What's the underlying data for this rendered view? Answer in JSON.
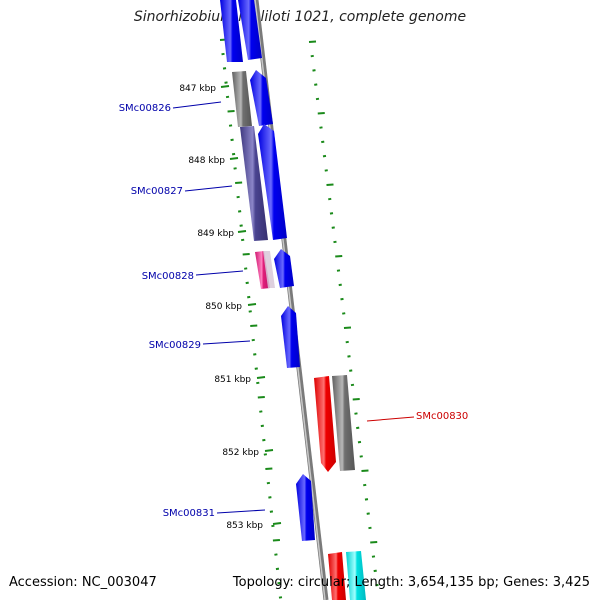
{
  "title": "Sinorhizobium meliloti 1021, complete genome",
  "footer": {
    "accession": "Accession: NC_003047",
    "topology": "Topology: circular; Length: 3,654,135 bp; Genes: 3,425"
  },
  "colors": {
    "backbone": "#909090",
    "gene_blue": "#0000e0",
    "gene_red": "#ee0000",
    "gene_cyan": "#00e0e0",
    "cds_gray": "#707070",
    "cds_slate": "#4a4490",
    "cds_pink": "#e0207a",
    "tick_green": "#1a8a1a",
    "label_blue": "#0000aa",
    "label_red": "#cc0000"
  },
  "ruler_ticks": [
    "847 kbp",
    "848 kbp",
    "849 kbp",
    "850 kbp",
    "851 kbp",
    "852 kbp",
    "853 kbp"
  ],
  "gene_labels": [
    {
      "text": "SMc00826",
      "strand": "reverse"
    },
    {
      "text": "SMc00827",
      "strand": "reverse"
    },
    {
      "text": "SMc00828",
      "strand": "reverse"
    },
    {
      "text": "SMc00829",
      "strand": "reverse"
    },
    {
      "text": "SMc00830",
      "strand": "forward"
    },
    {
      "text": "SMc00831",
      "strand": "reverse"
    }
  ]
}
